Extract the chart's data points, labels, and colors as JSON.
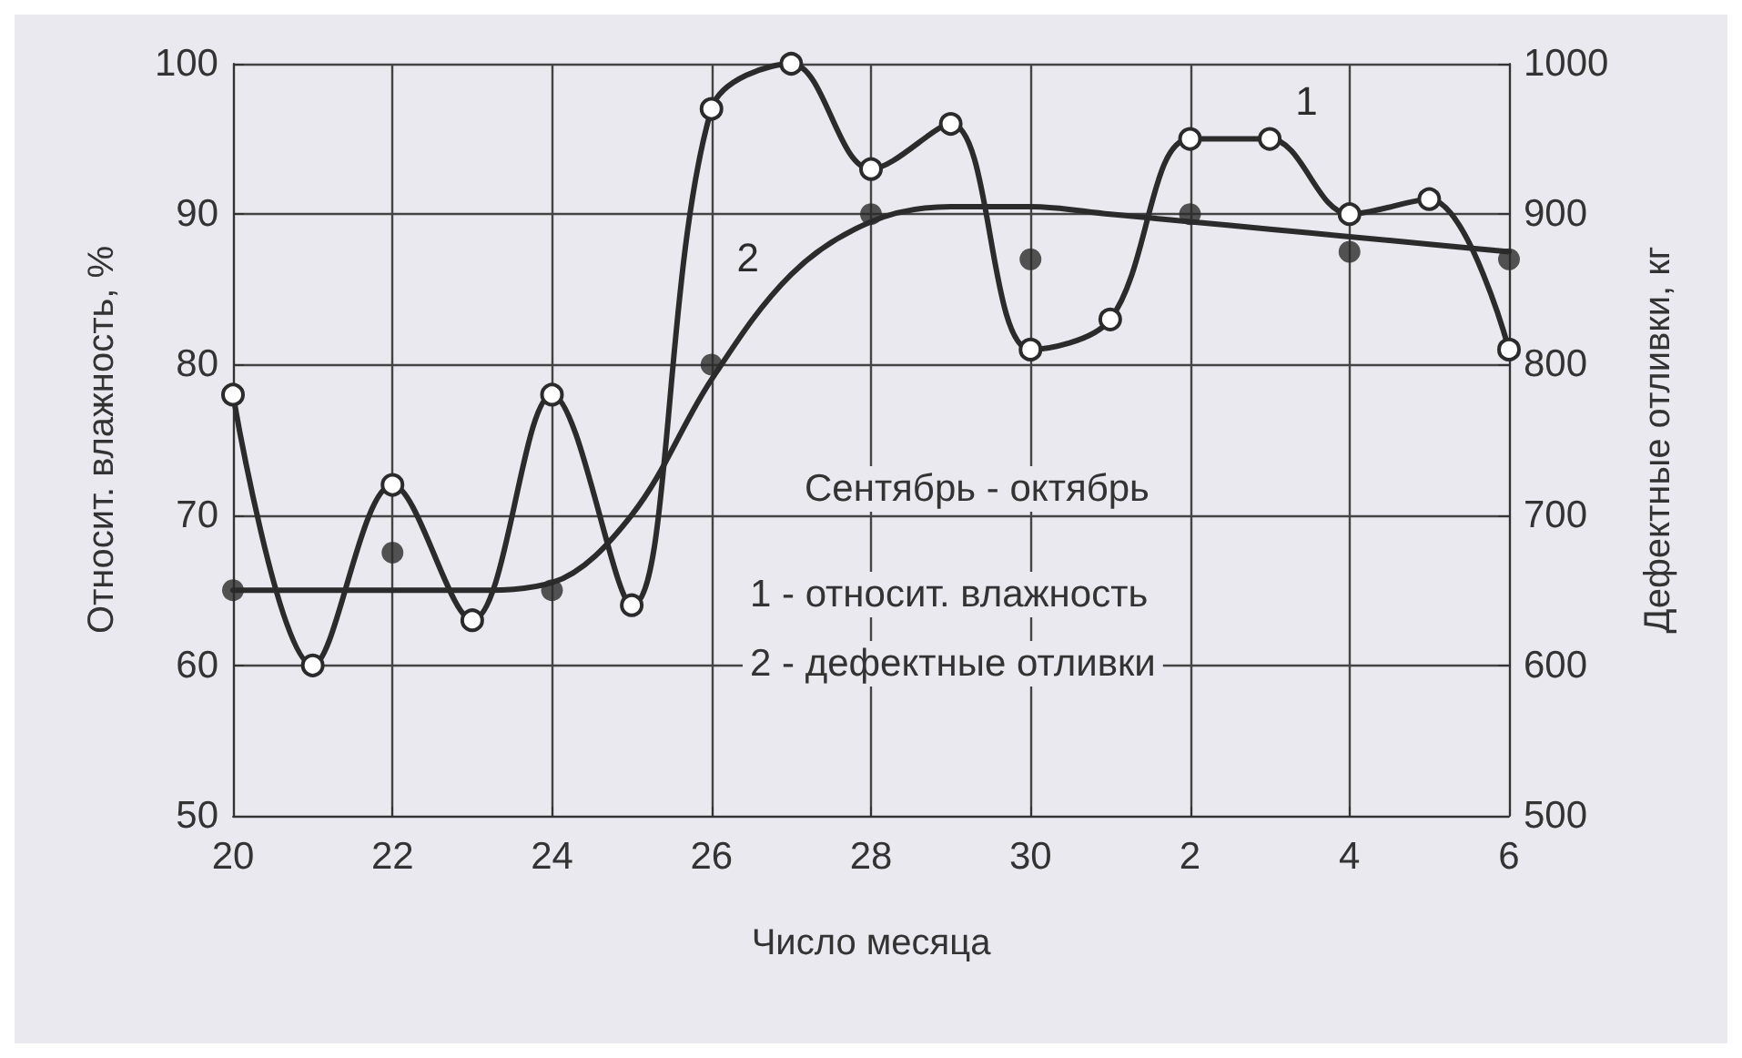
{
  "chart_data": {
    "type": "line",
    "xlabel": "Число месяца",
    "ylabel": "Относит. влажность, %",
    "y2label": "Дефектные отливки, кг",
    "categories": [
      "20",
      null,
      "22",
      null,
      "24",
      null,
      "26",
      null,
      "28",
      null,
      "30",
      null,
      "2",
      null,
      "4",
      null,
      "6"
    ],
    "ylim": [
      50,
      100
    ],
    "yticks": [
      50,
      60,
      70,
      80,
      90,
      100
    ],
    "y2lim": [
      500,
      1000
    ],
    "y2ticks": [
      500,
      600,
      700,
      800,
      900,
      1000
    ],
    "grid": true,
    "legend": false,
    "annotations": [
      "Сентябрь - октябрь",
      "1 - относит. влажность",
      "2 - дефектные отливки"
    ],
    "series": [
      {
        "name": "1",
        "color": "#2b2b2b",
        "marker": "circle",
        "values": [
          78,
          60,
          72,
          63,
          78,
          64,
          97,
          100,
          93,
          96,
          81,
          83,
          95,
          95,
          90,
          91,
          81
        ]
      },
      {
        "name": "2",
        "color": "#2b2b2b",
        "axis": "y2",
        "marker": "none",
        "values": [
          650,
          650,
          650,
          650,
          655,
          700,
          790,
          860,
          895,
          905,
          905,
          900,
          895,
          890,
          885,
          880,
          875
        ]
      },
      {
        "type": "scatter",
        "color": "#2b2b2b",
        "axis": "y2",
        "marker": "circle",
        "x": [
          "20",
          "22",
          "24",
          "26",
          "28",
          "30",
          "2",
          "4",
          "6"
        ],
        "values": [
          650,
          675,
          650,
          800,
          900,
          870,
          900,
          875,
          870
        ]
      }
    ]
  }
}
